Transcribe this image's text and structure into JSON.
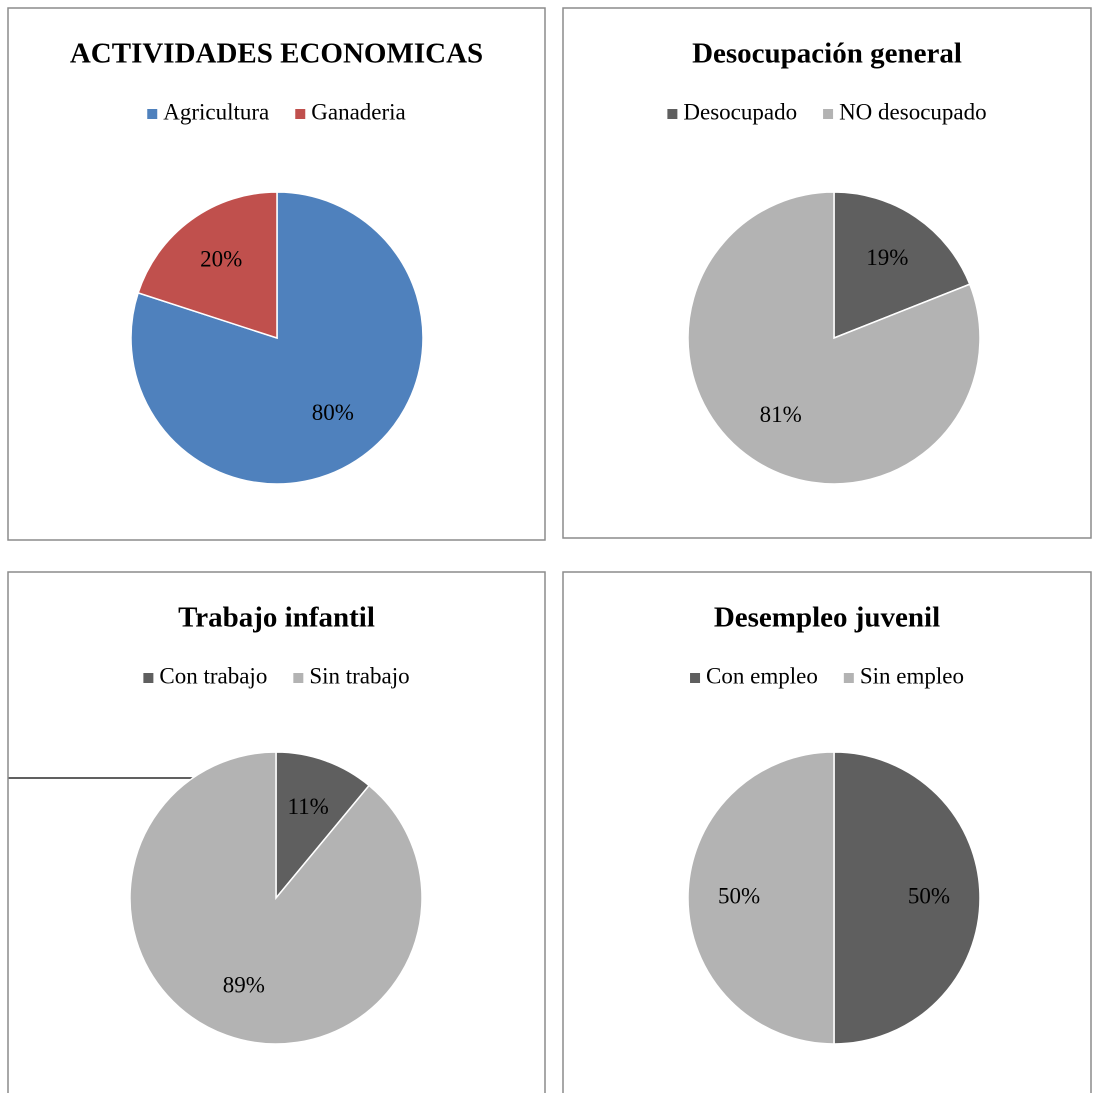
{
  "chart_data": [
    {
      "type": "pie",
      "title": "ACTIVIDADES ECONOMICAS",
      "categories": [
        "Agricultura",
        "Ganaderia"
      ],
      "values": [
        80,
        20
      ],
      "value_labels": [
        "80%",
        "20%"
      ],
      "colors": [
        "#4f81bd",
        "#c0504d"
      ],
      "legend": "top"
    },
    {
      "type": "pie",
      "title": "Desocupación general",
      "categories": [
        "Desocupado",
        "NO desocupado"
      ],
      "values": [
        19,
        81
      ],
      "value_labels": [
        "19%",
        "81%"
      ],
      "colors": [
        "#5f5f5f",
        "#b3b3b3"
      ],
      "legend": "top"
    },
    {
      "type": "pie",
      "title": "Trabajo infantil",
      "categories": [
        "Con trabajo",
        "Sin trabajo"
      ],
      "values": [
        11,
        89
      ],
      "value_labels": [
        "11%",
        "89%"
      ],
      "colors": [
        "#5f5f5f",
        "#b3b3b3"
      ],
      "legend": "top"
    },
    {
      "type": "pie",
      "title": "Desempleo juvenil",
      "categories": [
        "Con empleo",
        "Sin empleo"
      ],
      "values": [
        50,
        50
      ],
      "value_labels": [
        "50%",
        "50%"
      ],
      "colors": [
        "#5f5f5f",
        "#b3b3b3"
      ],
      "legend": "top"
    }
  ]
}
